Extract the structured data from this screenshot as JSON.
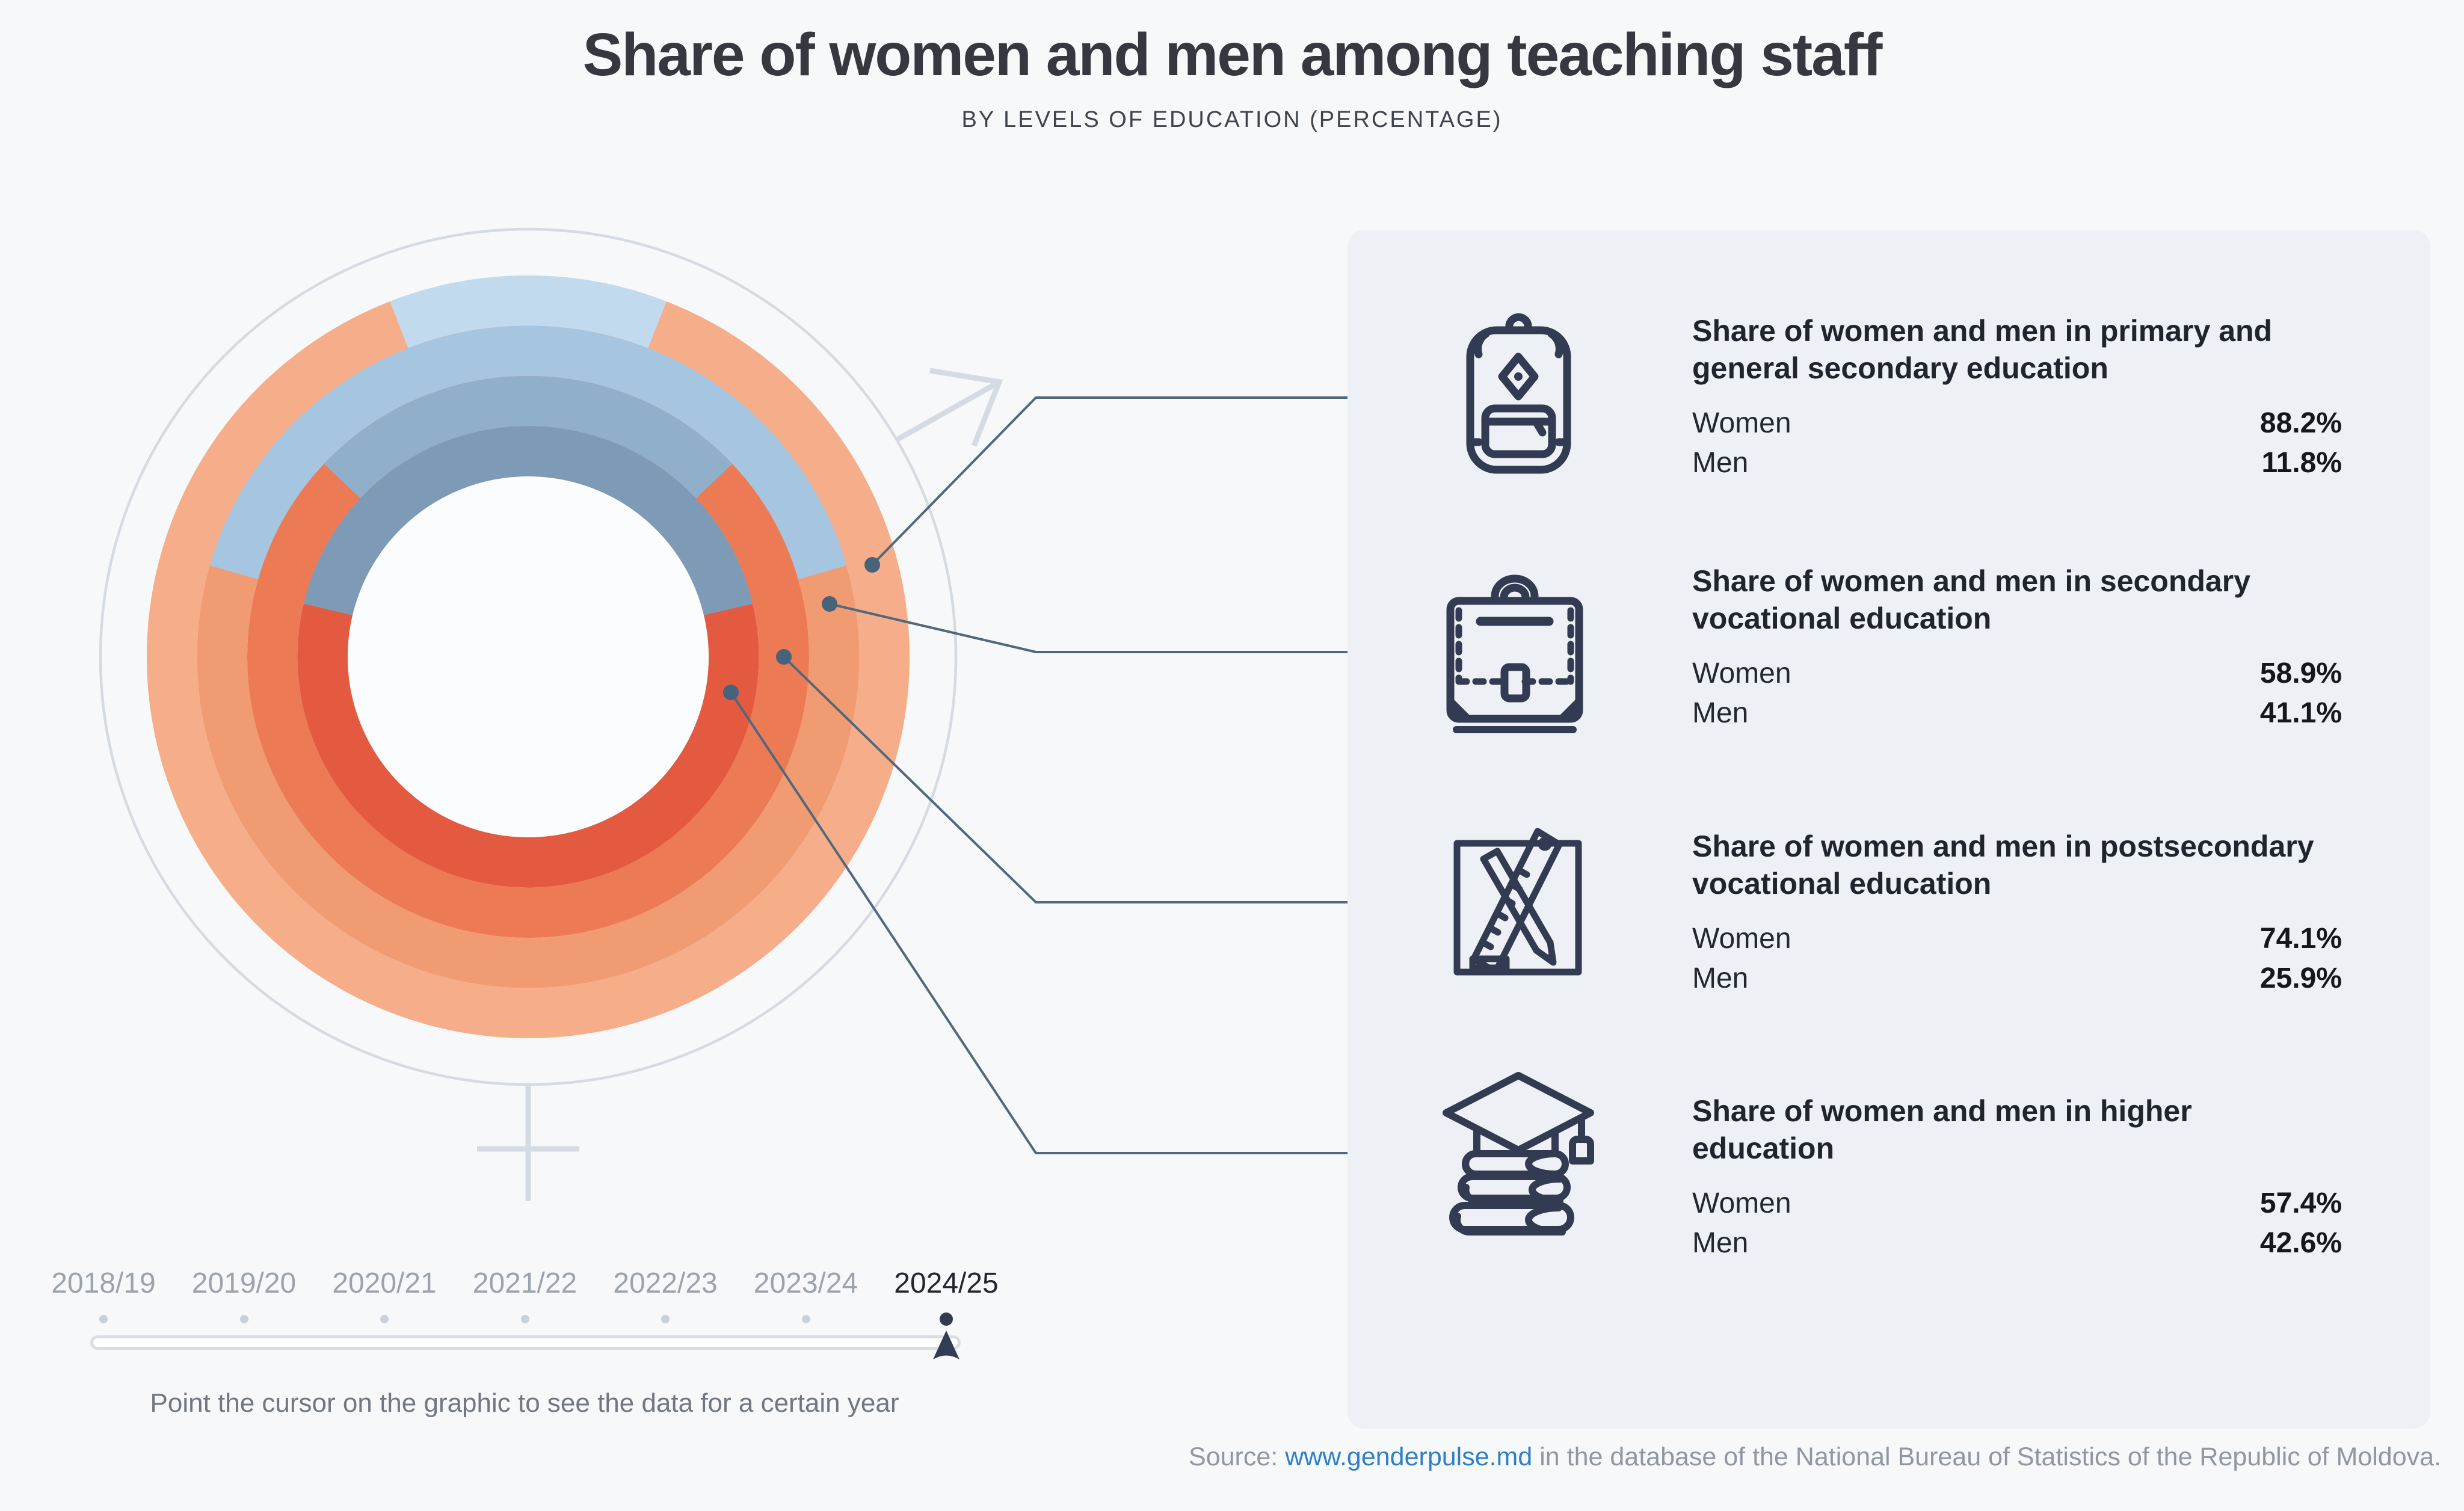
{
  "header": {
    "title": "Share of women and men among teaching staff",
    "subtitle": "BY LEVELS OF EDUCATION (PERCENTAGE)"
  },
  "chart_data": {
    "type": "donut-rings",
    "title": "Share of women and men among teaching staff",
    "subtitle": "By levels of education (percentage)",
    "year": "2024/25",
    "legend_note": "Each concentric ring is one education level (outermost to innermost); the blue arc centered at 12 o'clock is the men's share, the warm arc is the women's share",
    "rings": [
      {
        "level": "Primary and general secondary education",
        "women_pct": 88.2,
        "men_pct": 11.8,
        "women_color": "#F6AE8A",
        "men_color": "#C2DAED"
      },
      {
        "level": "Secondary vocational education",
        "women_pct": 58.9,
        "men_pct": 41.1,
        "women_color": "#F19B72",
        "men_color": "#A6C5E1"
      },
      {
        "level": "Postsecondary vocational education",
        "women_pct": 74.1,
        "men_pct": 25.9,
        "women_color": "#EC7A55",
        "men_color": "#90AFCB"
      },
      {
        "level": "Higher education",
        "women_pct": 57.4,
        "men_pct": 42.6,
        "women_color": "#E45A41",
        "men_color": "#7D9AB7"
      }
    ]
  },
  "panel": {
    "sections": [
      {
        "icon": "backpack-icon",
        "title": "Share of women and men in primary and general secondary education",
        "rows": [
          {
            "label": "Women",
            "value": "88.2%",
            "pct": 88.2,
            "color": "#F6AE8A"
          },
          {
            "label": "Men",
            "value": "11.8%",
            "pct": 11.8,
            "color": "#C2DAED"
          }
        ]
      },
      {
        "icon": "briefcase-icon",
        "title": "Share of women and men in secondary vocational education",
        "rows": [
          {
            "label": "Women",
            "value": "58.9%",
            "pct": 58.9,
            "color": "#F19B72"
          },
          {
            "label": "Men",
            "value": "41.1%",
            "pct": 41.1,
            "color": "#A6C5E1"
          }
        ]
      },
      {
        "icon": "pencil-ruler-icon",
        "title": "Share of women and men in postsecondary vocational education",
        "rows": [
          {
            "label": "Women",
            "value": "74.1%",
            "pct": 74.1,
            "color": "#EC7A55"
          },
          {
            "label": "Men",
            "value": "25.9%",
            "pct": 25.9,
            "color": "#90AFCB"
          }
        ]
      },
      {
        "icon": "graduation-books-icon",
        "title": "Share of women and men in higher education",
        "rows": [
          {
            "label": "Women",
            "value": "57.4%",
            "pct": 57.4,
            "color": "#E45A41"
          },
          {
            "label": "Men",
            "value": "42.6%",
            "pct": 42.6,
            "color": "#7D9AB7"
          }
        ]
      }
    ]
  },
  "timeline": {
    "years": [
      "2018/19",
      "2019/20",
      "2020/21",
      "2021/22",
      "2022/23",
      "2023/24",
      "2024/25"
    ],
    "active_year": "2024/25",
    "active_index": 6,
    "hint": "Point the cursor on the graphic to see the data for a certain year"
  },
  "source": {
    "prefix": "Source: ",
    "link": "www.genderpulse.md",
    "suffix": " in the database of the National Bureau of Statistics of the Republic of Moldova."
  }
}
